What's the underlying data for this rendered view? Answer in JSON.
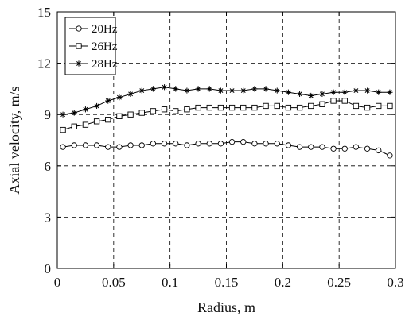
{
  "chart_data": {
    "type": "line",
    "xlabel": "Radius, m",
    "ylabel": "Axial velocity, m/s",
    "xlim": [
      0,
      0.3
    ],
    "ylim": [
      0,
      15
    ],
    "xticks": [
      0,
      0.05,
      0.1,
      0.15,
      0.2,
      0.25,
      0.3
    ],
    "xtick_labels": [
      "0",
      "0.05",
      "0.1",
      "0.15",
      "0.2",
      "0.25",
      "0.3"
    ],
    "yticks": [
      0,
      3,
      6,
      9,
      12,
      15
    ],
    "ytick_labels": [
      "0",
      "3",
      "6",
      "9",
      "12",
      "15"
    ],
    "grid": true,
    "legend_position": "top-left",
    "x": [
      0.005,
      0.015,
      0.025,
      0.035,
      0.045,
      0.055,
      0.065,
      0.075,
      0.085,
      0.095,
      0.105,
      0.115,
      0.125,
      0.135,
      0.145,
      0.155,
      0.165,
      0.175,
      0.185,
      0.195,
      0.205,
      0.215,
      0.225,
      0.235,
      0.245,
      0.255,
      0.265,
      0.275,
      0.285,
      0.295
    ],
    "series": [
      {
        "name": "20Hz",
        "marker": "circle",
        "values": [
          7.1,
          7.2,
          7.2,
          7.2,
          7.1,
          7.1,
          7.2,
          7.2,
          7.3,
          7.3,
          7.3,
          7.2,
          7.3,
          7.3,
          7.3,
          7.4,
          7.4,
          7.3,
          7.3,
          7.3,
          7.2,
          7.1,
          7.1,
          7.1,
          7.0,
          7.0,
          7.1,
          7.0,
          6.9,
          6.6
        ]
      },
      {
        "name": "26Hz",
        "marker": "square",
        "values": [
          8.1,
          8.3,
          8.4,
          8.6,
          8.7,
          8.9,
          9.0,
          9.1,
          9.2,
          9.3,
          9.2,
          9.3,
          9.4,
          9.4,
          9.4,
          9.4,
          9.4,
          9.4,
          9.5,
          9.5,
          9.4,
          9.4,
          9.5,
          9.6,
          9.8,
          9.8,
          9.5,
          9.4,
          9.5,
          9.5
        ]
      },
      {
        "name": "28Hz",
        "marker": "star",
        "values": [
          9.0,
          9.1,
          9.3,
          9.5,
          9.8,
          10.0,
          10.2,
          10.4,
          10.5,
          10.6,
          10.5,
          10.4,
          10.5,
          10.5,
          10.4,
          10.4,
          10.4,
          10.5,
          10.5,
          10.4,
          10.3,
          10.2,
          10.1,
          10.2,
          10.3,
          10.3,
          10.4,
          10.4,
          10.3,
          10.3
        ]
      }
    ]
  }
}
